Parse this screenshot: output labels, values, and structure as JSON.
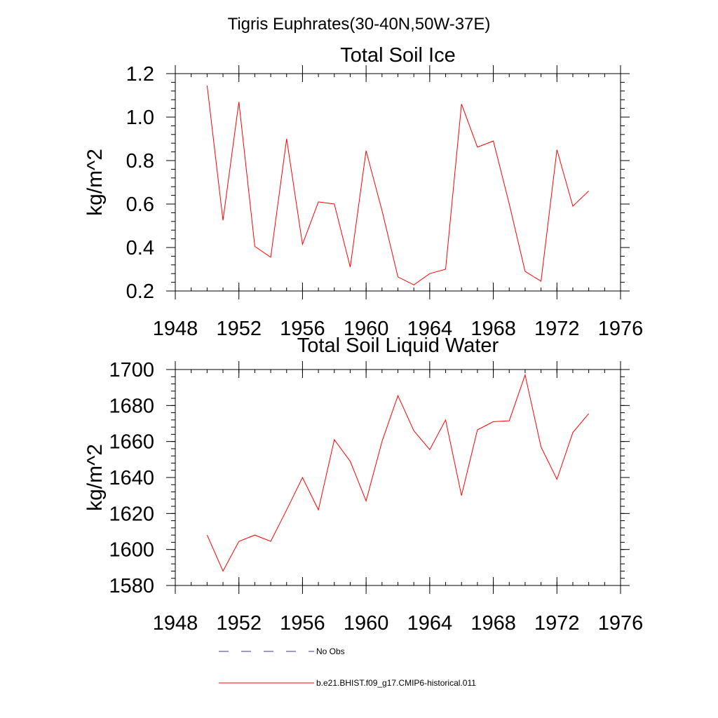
{
  "page_title": "Tigris Euphrates(30-40N,50W-37E)",
  "chart_data": [
    {
      "type": "line",
      "title": "Total Soil Ice",
      "xlabel": "",
      "ylabel": "kg/m^2",
      "xlim": [
        1948,
        1976
      ],
      "ylim": [
        0.2,
        1.2
      ],
      "x_ticks": [
        1948,
        1952,
        1956,
        1960,
        1964,
        1968,
        1972,
        1976
      ],
      "y_ticks": [
        0.2,
        0.4,
        0.6,
        0.8,
        1.0,
        1.2
      ],
      "y_tick_labels": [
        "0.2",
        "0.4",
        "0.6",
        "0.8",
        "1.0",
        "1.2"
      ],
      "x": [
        1950,
        1951,
        1952,
        1953,
        1954,
        1955,
        1956,
        1957,
        1958,
        1959,
        1960,
        1961,
        1962,
        1963,
        1964,
        1965,
        1966,
        1967,
        1968,
        1969,
        1970,
        1971,
        1972,
        1973,
        1974
      ],
      "series": [
        {
          "name": "b.e21.BHIST.f09_g17.CMIP6-historical.011",
          "color": "#ff0000",
          "values": [
            1.145,
            0.525,
            1.07,
            0.405,
            0.355,
            0.9,
            0.415,
            0.61,
            0.6,
            0.31,
            0.845,
            0.57,
            0.265,
            0.228,
            0.28,
            0.3,
            1.06,
            0.862,
            0.89,
            0.6,
            0.29,
            0.245,
            0.85,
            0.59,
            0.66
          ]
        }
      ]
    },
    {
      "type": "line",
      "title": "Total Soil Liquid Water",
      "xlabel": "",
      "ylabel": "kg/m^2",
      "xlim": [
        1948,
        1976
      ],
      "ylim": [
        1580,
        1700
      ],
      "x_ticks": [
        1948,
        1952,
        1956,
        1960,
        1964,
        1968,
        1972,
        1976
      ],
      "y_ticks": [
        1580,
        1600,
        1620,
        1640,
        1660,
        1680,
        1700
      ],
      "y_tick_labels": [
        "1580",
        "1600",
        "1620",
        "1640",
        "1660",
        "1680",
        "1700"
      ],
      "x": [
        1950,
        1951,
        1952,
        1953,
        1954,
        1955,
        1956,
        1957,
        1958,
        1959,
        1960,
        1961,
        1962,
        1963,
        1964,
        1965,
        1966,
        1967,
        1968,
        1969,
        1970,
        1971,
        1972,
        1973,
        1974
      ],
      "series": [
        {
          "name": "b.e21.BHIST.f09_g17.CMIP6-historical.011",
          "color": "#ff0000",
          "values": [
            1608,
            1588,
            1604.5,
            1608,
            1604.5,
            1622,
            1640,
            1622,
            1661,
            1649,
            1627,
            1660,
            1685.5,
            1666,
            1655.5,
            1672,
            1630,
            1666.5,
            1671,
            1671.5,
            1697,
            1657,
            1639,
            1665,
            1675.5
          ]
        }
      ]
    }
  ],
  "legend": [
    {
      "label": "No Obs",
      "style": "dashed",
      "color": "#3a3a7a"
    },
    {
      "label": "b.e21.BHIST.f09_g17.CMIP6-historical.011",
      "style": "solid",
      "color": "#ff0000"
    }
  ]
}
